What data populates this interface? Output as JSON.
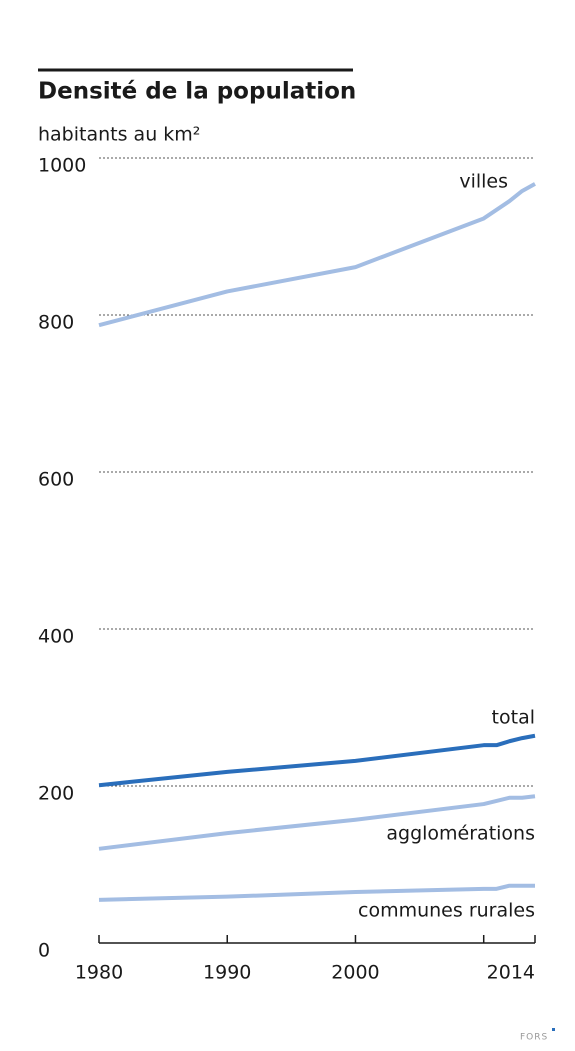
{
  "chart_data": {
    "type": "line",
    "title": "Densité de la population",
    "y_label": "habitants au km²",
    "x": [
      1980,
      1990,
      2000,
      2010,
      2011,
      2012,
      2013,
      2014
    ],
    "series": [
      {
        "name": "villes",
        "color": "#a3bde3",
        "values": [
          787,
          830,
          861,
          923,
          934,
          945,
          958,
          967
        ]
      },
      {
        "name": "total",
        "color": "#2a6ebb",
        "values": [
          201,
          218,
          232,
          252,
          252,
          257,
          261,
          264
        ]
      },
      {
        "name": "agglomérations",
        "color": "#a3bde3",
        "values": [
          120,
          140,
          157,
          177,
          181,
          185,
          185,
          187
        ]
      },
      {
        "name": "communes rurales",
        "color": "#a3bde3",
        "values": [
          55,
          59,
          65,
          69,
          69,
          73,
          73,
          73
        ]
      }
    ],
    "xlim": [
      1980,
      2014
    ],
    "xticks": [
      1980,
      1990,
      2000,
      {
        "value": 2010,
        "label": null
      },
      2014
    ],
    "ylim": [
      0,
      1000
    ],
    "yticks": [
      0,
      200,
      400,
      600,
      800,
      1000
    ],
    "grid": true
  },
  "footer": {
    "source": "FORS"
  }
}
